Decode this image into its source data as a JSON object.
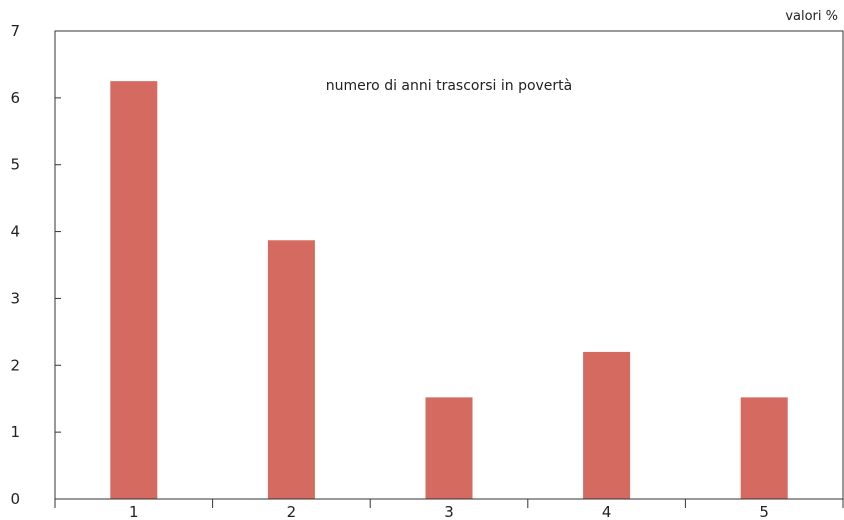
{
  "chart_data": {
    "type": "bar",
    "title": "numero di anni trascorsi in povertà",
    "unit_label": "valori %",
    "categories": [
      "1",
      "2",
      "3",
      "4",
      "5"
    ],
    "values": [
      6.25,
      3.87,
      1.52,
      2.2,
      1.52
    ],
    "ylim": [
      0,
      7
    ],
    "yticks": [
      "0",
      "1",
      "2",
      "3",
      "4",
      "5",
      "6",
      "7"
    ],
    "grid": false,
    "legend": "none",
    "bar_color": "#d46a60",
    "axis_color": "#333333"
  }
}
